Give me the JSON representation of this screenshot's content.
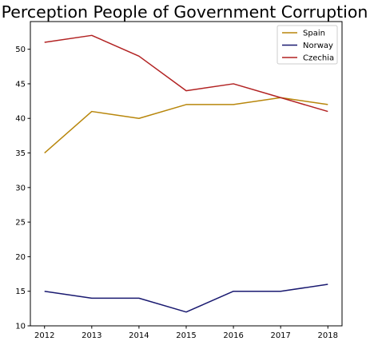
{
  "chart_data": {
    "type": "line",
    "title": "Perception People of Government Corruption",
    "xlabel": "",
    "ylabel": "",
    "x": [
      2012,
      2013,
      2014,
      2015,
      2016,
      2017,
      2018
    ],
    "xlim": [
      2011.7,
      2018.3
    ],
    "ylim": [
      10,
      54
    ],
    "yticks": [
      10,
      15,
      20,
      25,
      30,
      35,
      40,
      45,
      50
    ],
    "grid": false,
    "legend_position": "top-right",
    "series": [
      {
        "name": "Spain",
        "color": "#b8860b",
        "values": [
          35,
          41,
          40,
          42,
          42,
          43,
          42
        ]
      },
      {
        "name": "Norway",
        "color": "#191970",
        "values": [
          15,
          14,
          14,
          12,
          15,
          15,
          16
        ]
      },
      {
        "name": "Czechia",
        "color": "#b22222",
        "values": [
          51,
          52,
          49,
          44,
          45,
          43,
          41
        ]
      }
    ]
  }
}
